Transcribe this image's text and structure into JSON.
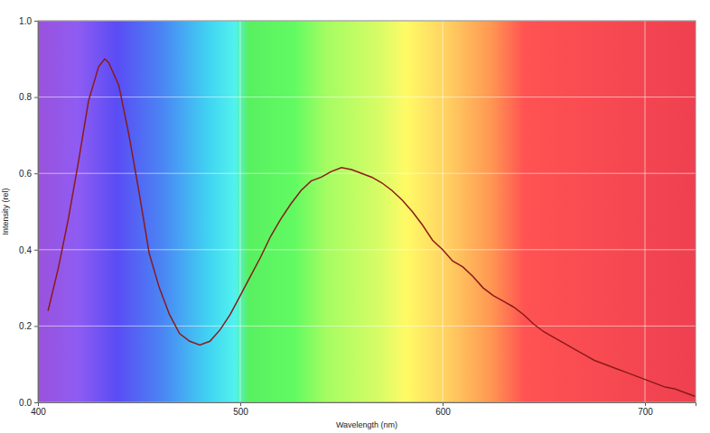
{
  "chart_data": {
    "type": "line",
    "x_label": "Wavelength (nm)",
    "y_label": "Intensity (rel)",
    "color": "#8b1a1a",
    "grid": true,
    "xlim": [
      400,
      725
    ],
    "xticks": [
      400,
      500,
      600,
      700
    ],
    "ylim": [
      0,
      1
    ],
    "yticks": [
      {
        "value": 0,
        "label": "0.0"
      },
      0.2,
      0.4,
      0.6,
      0.8,
      {
        "value": 1,
        "label": "1.0"
      }
    ],
    "x": [
      405,
      410,
      415,
      420,
      425,
      430,
      433,
      435,
      440,
      445,
      450,
      455,
      460,
      465,
      470,
      475,
      480,
      485,
      490,
      495,
      500,
      505,
      510,
      515,
      520,
      525,
      530,
      535,
      540,
      545,
      550,
      555,
      560,
      565,
      570,
      575,
      580,
      585,
      590,
      595,
      600,
      605,
      610,
      615,
      620,
      625,
      630,
      635,
      640,
      645,
      650,
      655,
      660,
      665,
      670,
      675,
      680,
      685,
      690,
      695,
      700,
      705,
      710,
      715,
      720,
      725
    ],
    "values": [
      0.24,
      0.35,
      0.48,
      0.63,
      0.79,
      0.88,
      0.9,
      0.89,
      0.83,
      0.7,
      0.55,
      0.39,
      0.3,
      0.23,
      0.18,
      0.16,
      0.15,
      0.16,
      0.19,
      0.23,
      0.28,
      0.33,
      0.38,
      0.435,
      0.48,
      0.52,
      0.555,
      0.58,
      0.59,
      0.605,
      0.615,
      0.61,
      0.6,
      0.59,
      0.575,
      0.555,
      0.53,
      0.5,
      0.465,
      0.425,
      0.4,
      0.37,
      0.355,
      0.33,
      0.3,
      0.28,
      0.265,
      0.25,
      0.23,
      0.205,
      0.185,
      0.17,
      0.155,
      0.14,
      0.125,
      0.11,
      0.1,
      0.09,
      0.08,
      0.07,
      0.06,
      0.05,
      0.04,
      0.035,
      0.025,
      0.015
    ]
  }
}
